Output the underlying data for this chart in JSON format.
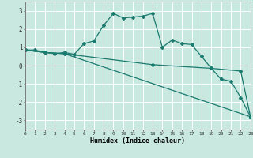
{
  "title": "",
  "xlabel": "Humidex (Indice chaleur)",
  "xlim": [
    0,
    23
  ],
  "ylim": [
    -3.5,
    3.5
  ],
  "yticks": [
    -3,
    -2,
    -1,
    0,
    1,
    2,
    3
  ],
  "xticks": [
    0,
    1,
    2,
    3,
    4,
    5,
    6,
    7,
    8,
    9,
    10,
    11,
    12,
    13,
    14,
    15,
    16,
    17,
    18,
    19,
    20,
    21,
    22,
    23
  ],
  "bg_color": "#c8e8e0",
  "grid_color": "#ffffff",
  "line_color": "#1a7a6e",
  "lines": [
    {
      "x": [
        0,
        1,
        2,
        3,
        4,
        5,
        6,
        7,
        8,
        9,
        10,
        11,
        12,
        13,
        14,
        15,
        16,
        17,
        18,
        19,
        20,
        21,
        22,
        23
      ],
      "y": [
        0.85,
        0.85,
        0.72,
        0.65,
        0.72,
        0.62,
        1.2,
        1.35,
        2.2,
        2.85,
        2.6,
        2.65,
        2.7,
        2.85,
        1.0,
        1.4,
        1.2,
        1.15,
        0.5,
        -0.15,
        -0.75,
        -0.85,
        -1.75,
        -2.8
      ]
    },
    {
      "x": [
        0,
        2,
        4,
        13,
        19,
        22,
        23
      ],
      "y": [
        0.85,
        0.72,
        0.65,
        0.05,
        -0.15,
        -0.3,
        -2.8
      ]
    },
    {
      "x": [
        0,
        2,
        4,
        23
      ],
      "y": [
        0.85,
        0.72,
        0.65,
        -2.8
      ]
    }
  ]
}
